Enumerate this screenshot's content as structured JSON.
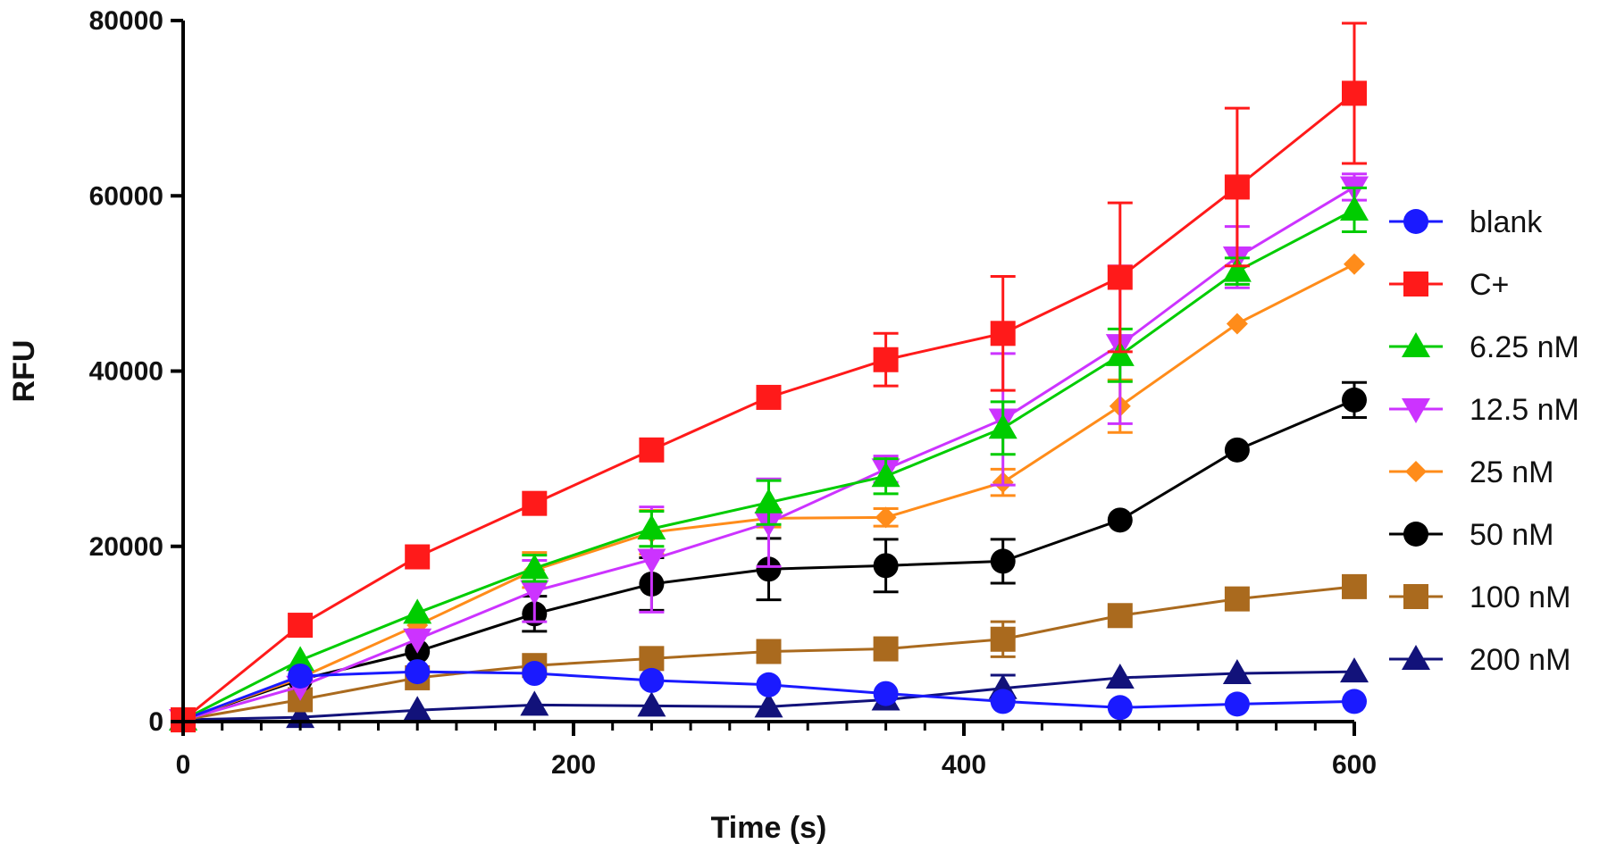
{
  "chart_data": {
    "type": "line",
    "title": "",
    "xlabel": "Time (s)",
    "ylabel": "RFU",
    "xlim": [
      0,
      600
    ],
    "ylim": [
      0,
      80000
    ],
    "xticks": [
      0,
      200,
      400,
      600
    ],
    "xtick_labels": [
      "0",
      "200",
      "400",
      "600"
    ],
    "yticks": [
      0,
      20000,
      40000,
      60000,
      80000
    ],
    "ytick_labels": [
      "0",
      "20000",
      "40000",
      "60000",
      "80000"
    ],
    "grid": false,
    "legend_position": "right",
    "x": [
      0,
      60,
      120,
      180,
      240,
      300,
      360,
      420,
      480,
      540,
      600
    ],
    "series": [
      {
        "name": "blank",
        "color": "#1a1aff",
        "marker": "circle",
        "values": [
          200,
          5200,
          5700,
          5500,
          4700,
          4200,
          3200,
          2300,
          1600,
          2000,
          2300
        ],
        "errors": [
          0,
          0,
          0,
          0,
          0,
          0,
          0,
          0,
          0,
          0,
          0
        ]
      },
      {
        "name": "C+",
        "color": "#ff1a1a",
        "marker": "square",
        "values": [
          200,
          11000,
          18800,
          24900,
          31000,
          37000,
          41300,
          44300,
          50700,
          61000,
          71700
        ],
        "errors": [
          0,
          0,
          0,
          0,
          0,
          0,
          3000,
          6500,
          8500,
          9000,
          8000
        ]
      },
      {
        "name": "6.25 nM",
        "color": "#00cc00",
        "marker": "triangle-up",
        "values": [
          200,
          7000,
          12400,
          17500,
          22000,
          25000,
          28000,
          33500,
          41800,
          51400,
          58400
        ],
        "errors": [
          0,
          0,
          0,
          1500,
          2000,
          2500,
          2000,
          3000,
          3000,
          1500,
          2500
        ]
      },
      {
        "name": "12.5 nM",
        "color": "#cc33ff",
        "marker": "triangle-down",
        "values": [
          200,
          4000,
          9400,
          14900,
          18500,
          22700,
          28800,
          34500,
          43000,
          53000,
          61000
        ],
        "errors": [
          0,
          0,
          0,
          3500,
          6000,
          5000,
          1500,
          7500,
          9000,
          3500,
          1500
        ]
      },
      {
        "name": "25 nM",
        "color": "#ff8c1a",
        "marker": "diamond",
        "values": [
          200,
          5000,
          11000,
          17300,
          21600,
          23200,
          23300,
          27300,
          36000,
          45400,
          52200
        ],
        "errors": [
          0,
          0,
          0,
          2000,
          2500,
          1000,
          1000,
          1500,
          3000,
          0,
          0
        ]
      },
      {
        "name": "50 nM",
        "color": "#000000",
        "marker": "circle",
        "values": [
          200,
          4800,
          8000,
          12300,
          15700,
          17400,
          17800,
          18300,
          23000,
          31000,
          36700
        ],
        "errors": [
          0,
          0,
          0,
          2000,
          3000,
          3500,
          3000,
          2500,
          0,
          0,
          2000
        ]
      },
      {
        "name": "100 nM",
        "color": "#aa6a1e",
        "marker": "square",
        "values": [
          200,
          2500,
          5000,
          6400,
          7200,
          8000,
          8300,
          9400,
          12100,
          14000,
          15400
        ],
        "errors": [
          0,
          0,
          0,
          0,
          0,
          0,
          0,
          2000,
          0,
          0,
          0
        ]
      },
      {
        "name": "200 nM",
        "color": "#12127a",
        "marker": "triangle-up",
        "values": [
          200,
          500,
          1300,
          1900,
          1800,
          1700,
          2500,
          3800,
          5000,
          5500,
          5700
        ],
        "errors": [
          0,
          0,
          0,
          0,
          0,
          0,
          0,
          1500,
          0,
          0,
          0
        ]
      }
    ]
  }
}
